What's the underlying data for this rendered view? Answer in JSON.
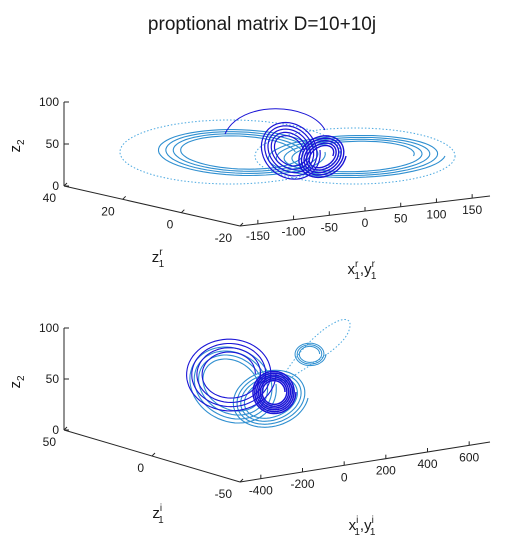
{
  "figure": {
    "title": "proptional matrix D=10+10j"
  },
  "chart_data": [
    {
      "type": "line",
      "subplot": "top",
      "z_axis": {
        "label": "z",
        "label_sub": "2",
        "ticks": [
          "0",
          "50",
          "100"
        ],
        "range": [
          0,
          100
        ]
      },
      "y_axis": {
        "label": "z",
        "label_sub": "1",
        "label_sup": "r",
        "ticks": [
          "40",
          "20",
          "0",
          "-20"
        ],
        "range": [
          -20,
          40
        ]
      },
      "x_axis": {
        "label": "x",
        "label_sub": "1",
        "label_sup": "r",
        "label2": "y",
        "label2_sub": "1",
        "label2_sup": "r",
        "ticks": [
          "-150",
          "-100",
          "-50",
          "0",
          "50",
          "100",
          "150"
        ],
        "range": [
          -150,
          150
        ]
      },
      "series": [
        {
          "role": "master-trajectory-dotted",
          "color": "#4aa8e0"
        },
        {
          "role": "master-trajectory",
          "color": "#2f8fd0"
        },
        {
          "role": "slave-trajectory",
          "color": "#1a14d6"
        }
      ],
      "grid": false,
      "legend": "none"
    },
    {
      "type": "line",
      "subplot": "bottom",
      "z_axis": {
        "label": "z",
        "label_sub": "2",
        "ticks": [
          "0",
          "50",
          "100"
        ],
        "range": [
          0,
          100
        ]
      },
      "y_axis": {
        "label": "z",
        "label_sub": "1",
        "label_sup": "i",
        "ticks": [
          "50",
          "0",
          "-50"
        ],
        "range": [
          -50,
          50
        ]
      },
      "x_axis": {
        "label": "x",
        "label_sub": "1",
        "label_sup": "i",
        "label2": "y",
        "label2_sub": "1",
        "label2_sup": "i",
        "ticks": [
          "-400",
          "-200",
          "0",
          "200",
          "400",
          "600"
        ],
        "range": [
          -400,
          600
        ]
      },
      "series": [
        {
          "role": "master-trajectory-dotted",
          "color": "#4aa8e0"
        },
        {
          "role": "master-trajectory",
          "color": "#2f8fd0"
        },
        {
          "role": "slave-trajectory",
          "color": "#1a14d6"
        }
      ],
      "grid": false,
      "legend": "none"
    }
  ]
}
